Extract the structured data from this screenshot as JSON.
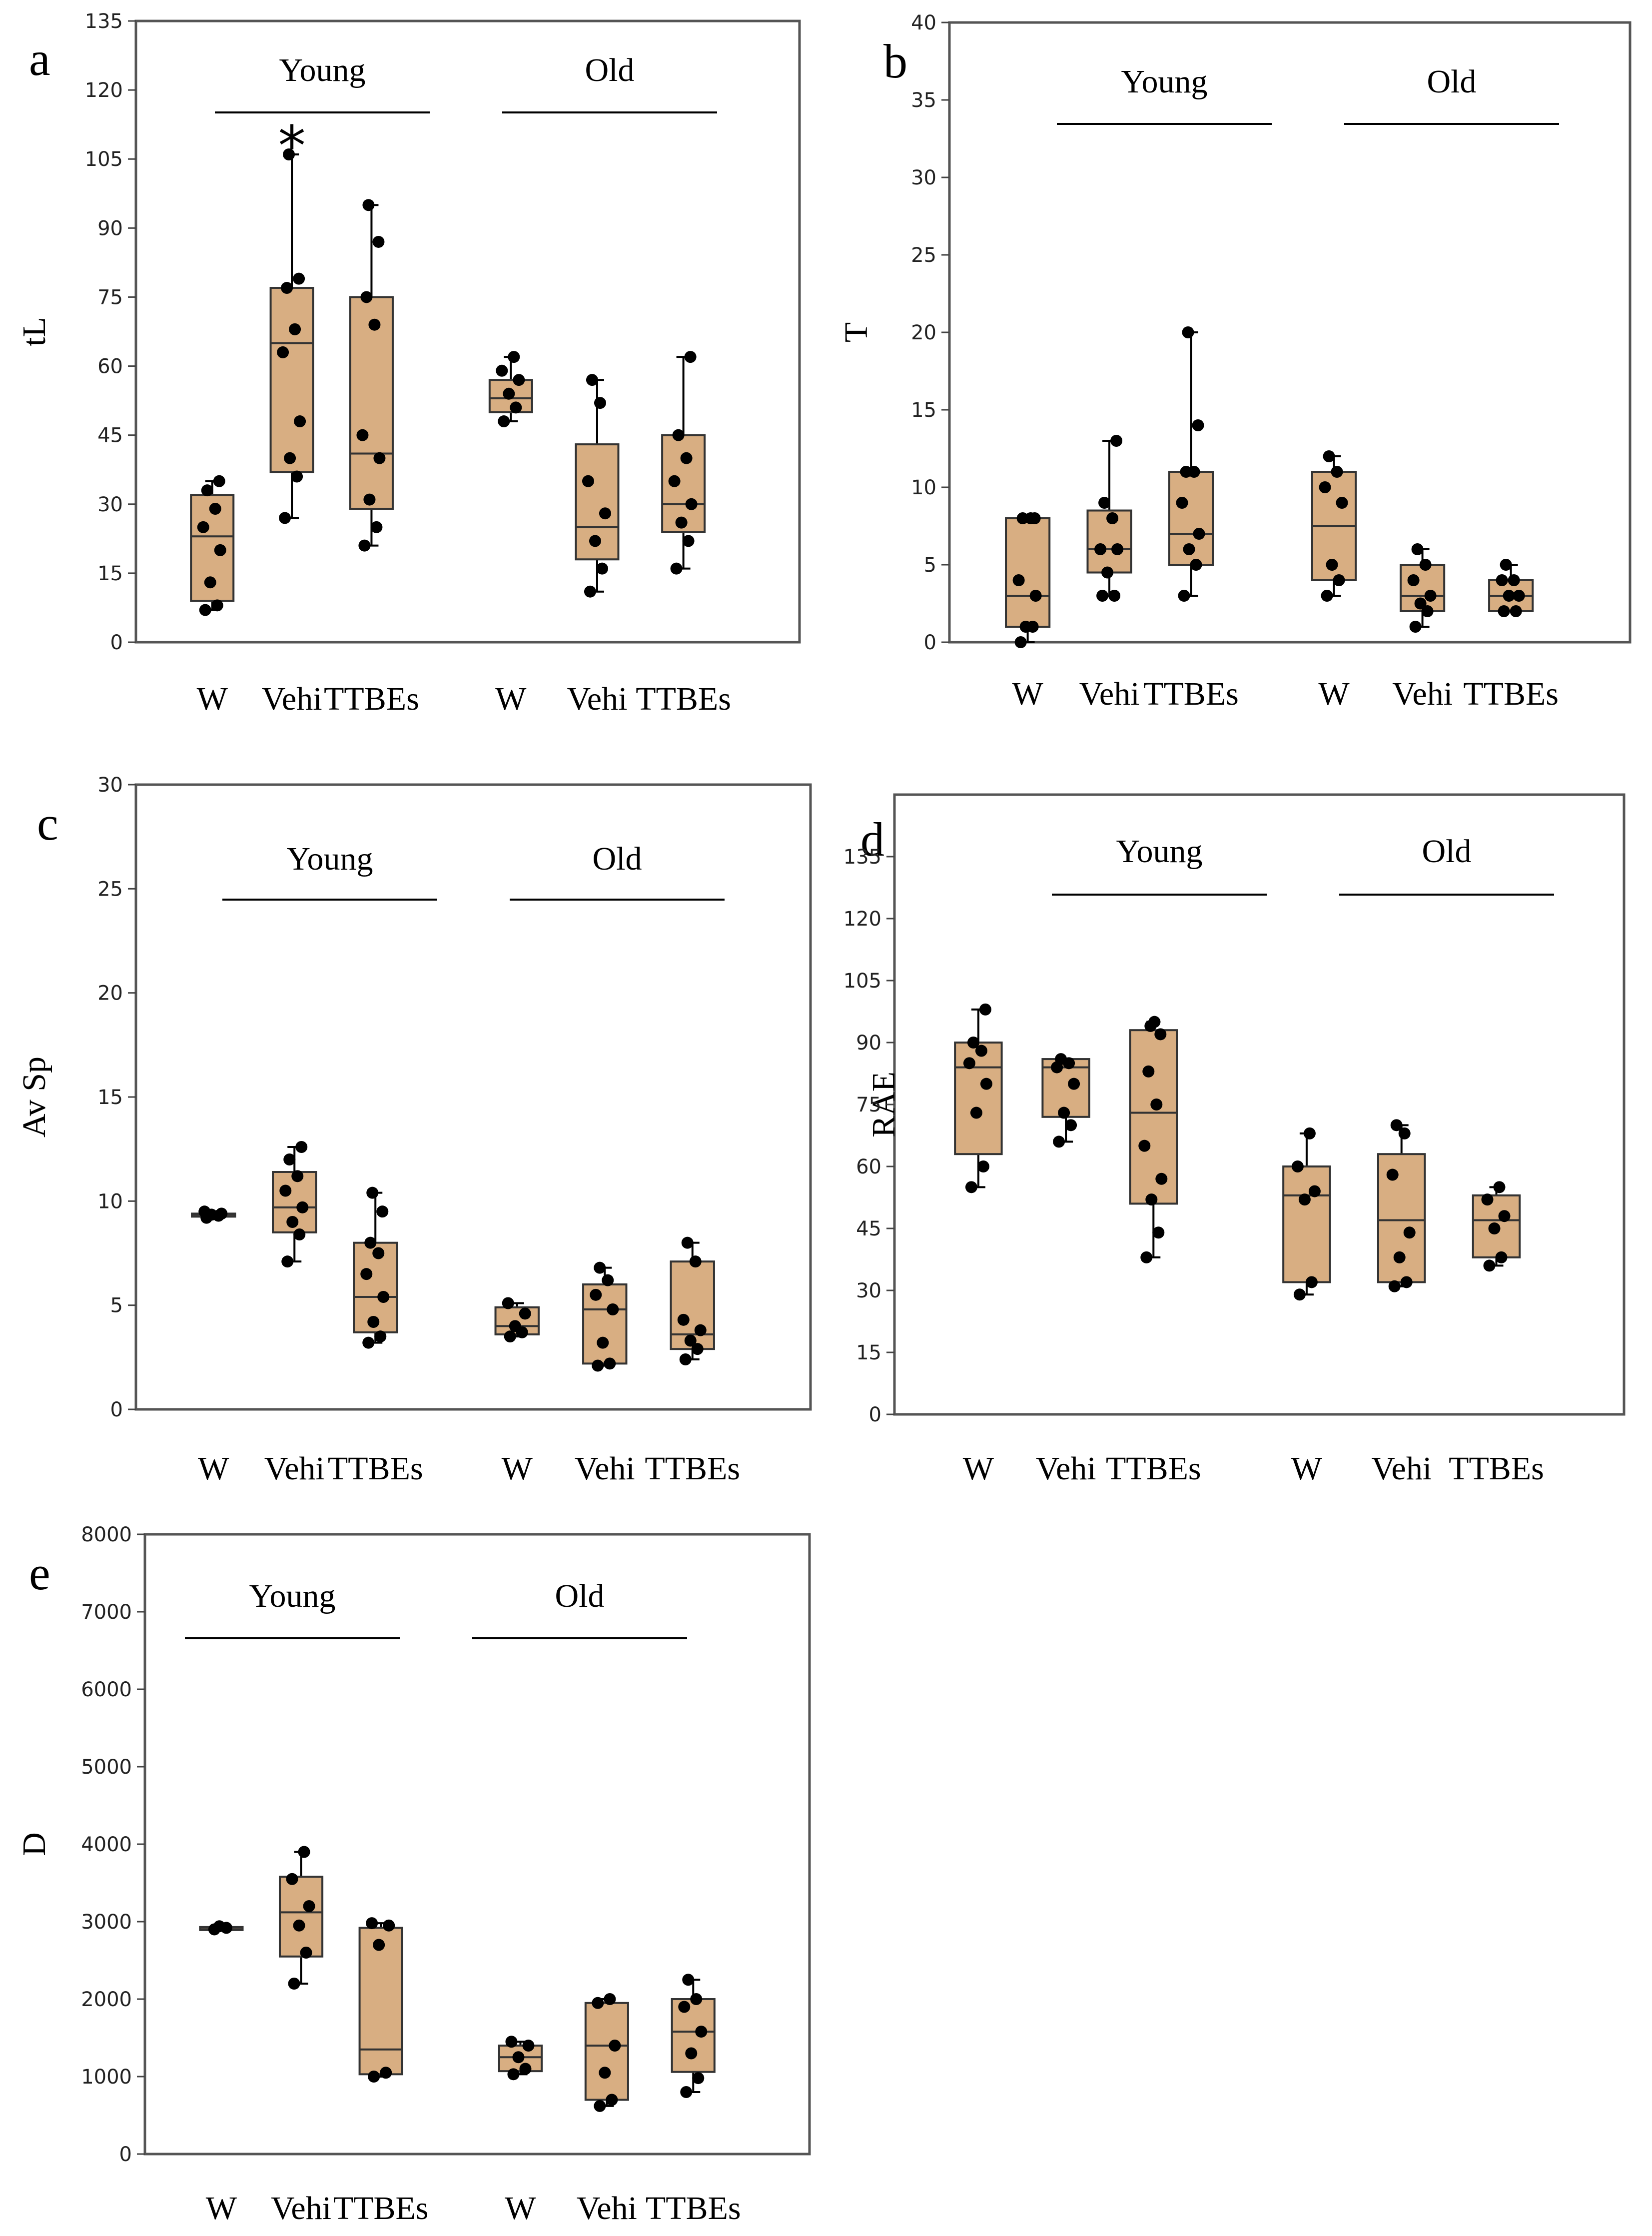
{
  "figure": {
    "box_fill": "#d8ae82",
    "box_stroke": "#333333",
    "point_color": "#000000",
    "frame_color": "#555555"
  },
  "chart_data": [
    {
      "panel": "a",
      "type": "box",
      "ylabel": "tL",
      "ylim": [
        0,
        135
      ],
      "yticks": [
        0,
        15,
        30,
        45,
        60,
        75,
        90,
        105,
        120,
        135
      ],
      "groups": [
        "Young",
        "Old"
      ],
      "categories": [
        "W",
        "Vehi",
        "TTBEs",
        "W",
        "Vehi",
        "TTBEs"
      ],
      "significance": "*",
      "significance_category": 1,
      "boxes": [
        {
          "min": 7,
          "q1": 9,
          "median": 23,
          "q3": 32,
          "max": 35,
          "points": [
            7,
            8,
            13,
            20,
            25,
            29,
            33,
            35
          ]
        },
        {
          "min": 27,
          "q1": 37,
          "median": 65,
          "q3": 77,
          "max": 106,
          "points": [
            27,
            36,
            40,
            48,
            63,
            68,
            77,
            79,
            106
          ]
        },
        {
          "min": 21,
          "q1": 29,
          "median": 41,
          "q3": 75,
          "max": 95,
          "points": [
            21,
            25,
            31,
            40,
            45,
            69,
            75,
            87,
            95
          ]
        },
        {
          "min": 48,
          "q1": 50,
          "median": 53,
          "q3": 57,
          "max": 62,
          "points": [
            48,
            51,
            54,
            57,
            59,
            62
          ]
        },
        {
          "min": 11,
          "q1": 18,
          "median": 25,
          "q3": 43,
          "max": 57,
          "points": [
            11,
            16,
            22,
            28,
            35,
            52,
            57
          ]
        },
        {
          "min": 16,
          "q1": 24,
          "median": 30,
          "q3": 45,
          "max": 62,
          "points": [
            16,
            22,
            26,
            30,
            35,
            40,
            45,
            62
          ]
        }
      ]
    },
    {
      "panel": "b",
      "type": "box",
      "ylabel": "T",
      "ylim": [
        0,
        40
      ],
      "yticks": [
        0,
        5,
        10,
        15,
        20,
        25,
        30,
        35,
        40
      ],
      "groups": [
        "Young",
        "Old"
      ],
      "categories": [
        "W",
        "Vehi",
        "TTBEs",
        "W",
        "Vehi",
        "TTBEs"
      ],
      "boxes": [
        {
          "min": 0,
          "q1": 1,
          "median": 3,
          "q3": 8,
          "max": 8,
          "points": [
            0,
            1,
            1,
            3,
            4,
            8,
            8,
            8
          ]
        },
        {
          "min": 3,
          "q1": 4.5,
          "median": 6,
          "q3": 8.5,
          "max": 13,
          "points": [
            3,
            3,
            4.5,
            6,
            6,
            8,
            9,
            13
          ]
        },
        {
          "min": 3,
          "q1": 5,
          "median": 7,
          "q3": 11,
          "max": 20,
          "points": [
            3,
            5,
            6,
            7,
            9,
            11,
            11,
            14,
            20
          ]
        },
        {
          "min": 3,
          "q1": 4,
          "median": 7.5,
          "q3": 11,
          "max": 12,
          "points": [
            3,
            4,
            5,
            9,
            10,
            11,
            12
          ]
        },
        {
          "min": 1,
          "q1": 2,
          "median": 3,
          "q3": 5,
          "max": 6,
          "points": [
            1,
            2,
            2.5,
            3,
            4,
            5,
            6
          ]
        },
        {
          "min": 2,
          "q1": 2,
          "median": 3,
          "q3": 4,
          "max": 5,
          "points": [
            2,
            2,
            3,
            3,
            4,
            4,
            5
          ]
        }
      ]
    },
    {
      "panel": "c",
      "type": "box",
      "ylabel": "Av Sp",
      "ylim": [
        0,
        30
      ],
      "yticks": [
        0,
        5,
        10,
        15,
        20,
        25,
        30
      ],
      "groups": [
        "Young",
        "Old"
      ],
      "categories": [
        "W",
        "Vehi",
        "TTBEs",
        "W",
        "Vehi",
        "TTBEs"
      ],
      "boxes": [
        {
          "min": 9.2,
          "q1": 9.3,
          "median": 9.35,
          "q3": 9.4,
          "max": 9.5,
          "points": [
            9.2,
            9.3,
            9.35,
            9.4,
            9.5
          ]
        },
        {
          "min": 7.1,
          "q1": 8.5,
          "median": 9.7,
          "q3": 11.4,
          "max": 12.6,
          "points": [
            7.1,
            8.4,
            9.0,
            9.7,
            10.5,
            11.2,
            12.0,
            12.6
          ]
        },
        {
          "min": 3.2,
          "q1": 3.7,
          "median": 5.4,
          "q3": 8.0,
          "max": 10.4,
          "points": [
            3.2,
            3.5,
            4.2,
            5.4,
            6.5,
            7.5,
            8.0,
            9.5,
            10.4
          ]
        },
        {
          "min": 3.5,
          "q1": 3.6,
          "median": 4.0,
          "q3": 4.9,
          "max": 5.1,
          "points": [
            3.5,
            3.7,
            4.0,
            4.6,
            5.1
          ]
        },
        {
          "min": 2.1,
          "q1": 2.2,
          "median": 4.8,
          "q3": 6.0,
          "max": 6.8,
          "points": [
            2.1,
            2.2,
            3.2,
            4.8,
            5.5,
            6.2,
            6.8
          ]
        },
        {
          "min": 2.4,
          "q1": 2.9,
          "median": 3.6,
          "q3": 7.1,
          "max": 8.0,
          "points": [
            2.4,
            2.9,
            3.3,
            3.8,
            4.3,
            7.1,
            8.0
          ]
        }
      ]
    },
    {
      "panel": "d",
      "type": "box",
      "ylabel": "RAE",
      "ylim": [
        0,
        150
      ],
      "yticks": [
        0,
        15,
        30,
        45,
        60,
        75,
        90,
        105,
        120,
        135
      ],
      "groups": [
        "Young",
        "Old"
      ],
      "categories": [
        "W",
        "Vehi",
        "TTBEs",
        "W",
        "Vehi",
        "TTBEs"
      ],
      "boxes": [
        {
          "min": 55,
          "q1": 63,
          "median": 84,
          "q3": 90,
          "max": 98,
          "points": [
            55,
            60,
            73,
            80,
            85,
            88,
            90,
            98
          ]
        },
        {
          "min": 66,
          "q1": 72,
          "median": 84,
          "q3": 86,
          "max": 86,
          "points": [
            66,
            70,
            73,
            80,
            84,
            85,
            86
          ]
        },
        {
          "min": 38,
          "q1": 51,
          "median": 73,
          "q3": 93,
          "max": 95,
          "points": [
            38,
            44,
            52,
            57,
            65,
            75,
            83,
            92,
            94,
            95
          ]
        },
        {
          "min": 29,
          "q1": 32,
          "median": 53,
          "q3": 60,
          "max": 68,
          "points": [
            29,
            32,
            52,
            54,
            60,
            68
          ]
        },
        {
          "min": 31,
          "q1": 32,
          "median": 47,
          "q3": 63,
          "max": 70,
          "points": [
            31,
            32,
            38,
            44,
            58,
            68,
            70
          ]
        },
        {
          "min": 36,
          "q1": 38,
          "median": 47,
          "q3": 53,
          "max": 55,
          "points": [
            36,
            38,
            45,
            48,
            52,
            55
          ]
        }
      ]
    },
    {
      "panel": "e",
      "type": "box",
      "ylabel": "D",
      "ylim": [
        0,
        8000
      ],
      "yticks": [
        0,
        1000,
        2000,
        3000,
        4000,
        5000,
        6000,
        7000,
        8000
      ],
      "groups": [
        "Young",
        "Old"
      ],
      "categories": [
        "W",
        "Vehi",
        "TTBEs",
        "W",
        "Vehi",
        "TTBEs"
      ],
      "boxes": [
        {
          "min": 2900,
          "q1": 2910,
          "median": 2920,
          "q3": 2930,
          "max": 2940,
          "points": [
            2900,
            2920,
            2940
          ]
        },
        {
          "min": 2200,
          "q1": 2550,
          "median": 3120,
          "q3": 3580,
          "max": 3900,
          "points": [
            2200,
            2600,
            2950,
            3200,
            3550,
            3900
          ]
        },
        {
          "min": 1000,
          "q1": 1030,
          "median": 1350,
          "q3": 2920,
          "max": 2980,
          "points": [
            1000,
            1050,
            2700,
            2950,
            2980
          ]
        },
        {
          "min": 1030,
          "q1": 1070,
          "median": 1250,
          "q3": 1400,
          "max": 1450,
          "points": [
            1030,
            1100,
            1250,
            1400,
            1450
          ]
        },
        {
          "min": 620,
          "q1": 700,
          "median": 1400,
          "q3": 1950,
          "max": 2000,
          "points": [
            620,
            700,
            1050,
            1400,
            1950,
            2000
          ]
        },
        {
          "min": 800,
          "q1": 1060,
          "median": 1580,
          "q3": 2000,
          "max": 2250,
          "points": [
            800,
            980,
            1300,
            1580,
            1900,
            2000,
            2250
          ]
        }
      ]
    }
  ]
}
